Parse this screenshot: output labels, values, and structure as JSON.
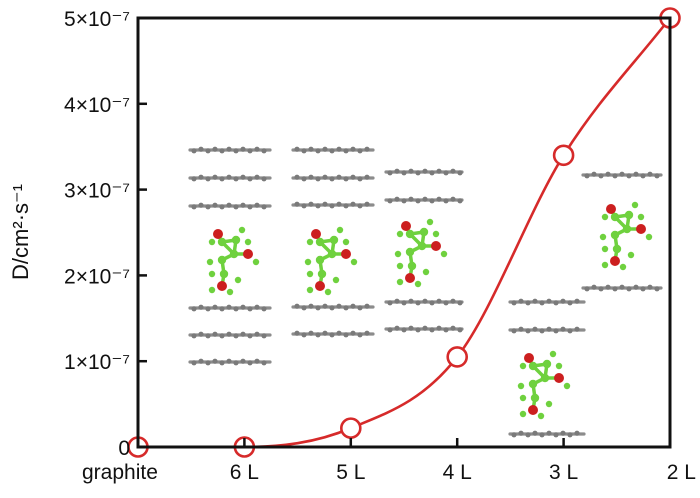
{
  "chart_data": {
    "type": "line",
    "title": "",
    "xlabel": "",
    "ylabel": "D/cm²·s⁻¹",
    "categories": [
      "graphite",
      "6 L",
      "5 L",
      "4 L",
      "3 L",
      "2 L"
    ],
    "series": [
      {
        "name": "D",
        "color": "#d62a2a",
        "marker": "open-circle",
        "values": [
          0,
          0,
          2.2e-08,
          1.05e-07,
          3.4e-07,
          5e-07
        ]
      }
    ],
    "ylim": [
      0,
      5e-07
    ],
    "yticks": [
      {
        "value": 0,
        "label": "0"
      },
      {
        "value": 1e-07,
        "label": "1×10⁻⁷"
      },
      {
        "value": 2e-07,
        "label": "2×10⁻⁷"
      },
      {
        "value": 3e-07,
        "label": "3×10⁻⁷"
      },
      {
        "value": 4e-07,
        "label": "4×10⁻⁷"
      },
      {
        "value": 5e-07,
        "label": "5×10⁻⁷"
      }
    ],
    "grid": false,
    "insets": [
      {
        "category": "6 L",
        "depicts": "molecule intercalated between graphene layers",
        "layers_above": 3,
        "layers_below": 3
      },
      {
        "category": "5 L",
        "depicts": "molecule intercalated between graphene layers",
        "layers_above": 3,
        "layers_below": 2
      },
      {
        "category": "4 L",
        "depicts": "molecule intercalated between graphene layers",
        "layers_above": 2,
        "layers_below": 2
      },
      {
        "category": "3 L",
        "depicts": "molecule intercalated between graphene layers",
        "layers_above": 2,
        "layers_below": 1
      },
      {
        "category": "2 L",
        "depicts": "molecule intercalated between graphene layers",
        "layers_above": 1,
        "layers_below": 1
      }
    ]
  },
  "colors": {
    "line": "#d62a2a",
    "graphene": "#8c8c8c",
    "carbon_atom": "#6fd13e",
    "oxygen_atom": "#cc1f1f",
    "axis": "#111111"
  }
}
